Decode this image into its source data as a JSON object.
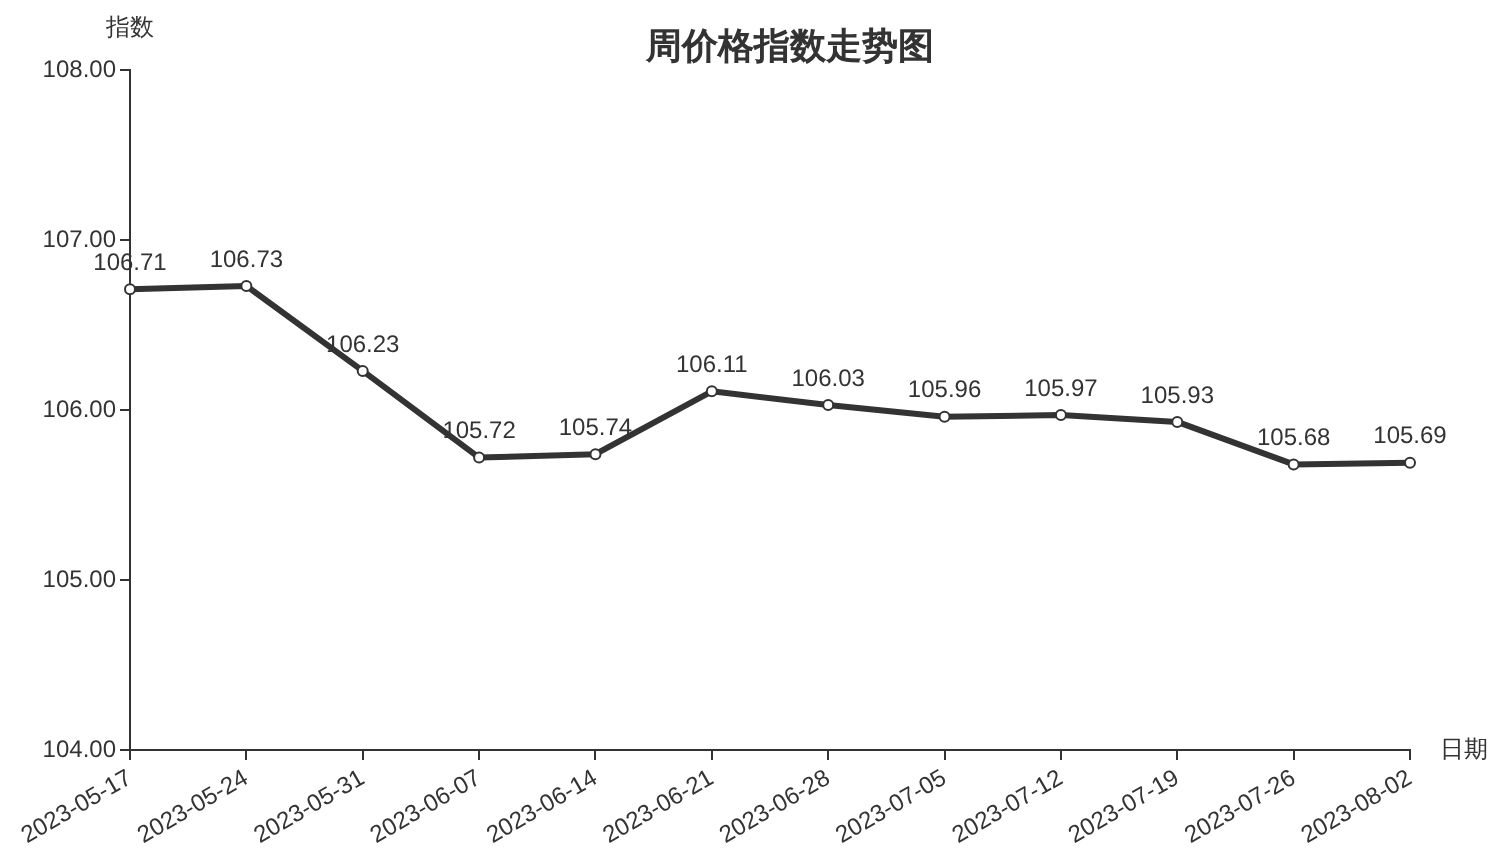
{
  "chart_data": {
    "type": "line",
    "title": "周价格指数走势图",
    "xlabel": "日期",
    "ylabel": "指数",
    "categories": [
      "2023-05-17",
      "2023-05-24",
      "2023-05-31",
      "2023-06-07",
      "2023-06-14",
      "2023-06-21",
      "2023-06-28",
      "2023-07-05",
      "2023-07-12",
      "2023-07-19",
      "2023-07-26",
      "2023-08-02"
    ],
    "series": [
      {
        "color": "#333333",
        "values": [
          106.71,
          106.73,
          106.23,
          105.72,
          105.74,
          106.11,
          106.03,
          105.96,
          105.97,
          105.93,
          105.68,
          105.69
        ]
      }
    ],
    "ylim": [
      104,
      108
    ],
    "yticks": [
      {
        "value": 104,
        "label": "104.00"
      },
      {
        "value": 105,
        "label": "105.00"
      },
      {
        "value": 106,
        "label": "106.00"
      },
      {
        "value": 107,
        "label": "107.00"
      },
      {
        "value": 108,
        "label": "108.00"
      }
    ],
    "marker": "circle",
    "line_style": "solid",
    "data_labels": true
  }
}
